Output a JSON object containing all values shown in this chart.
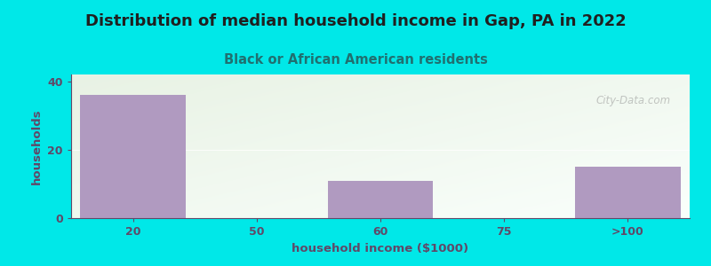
{
  "title": "Distribution of median household income in Gap, PA in 2022",
  "subtitle": "Black or African American residents",
  "xlabel": "household income ($1000)",
  "ylabel": "households",
  "categories": [
    "20",
    "50",
    "60",
    "75",
    ">100"
  ],
  "values": [
    36,
    0,
    11,
    0,
    15
  ],
  "bar_color": "#b09ac0",
  "background_color": "#00e8e8",
  "plot_bg_color_topleft": "#e8f0e4",
  "plot_bg_color_bottomright": "#f8faf8",
  "yticks": [
    0,
    20,
    40
  ],
  "ylim": [
    0,
    42
  ],
  "title_color": "#202020",
  "subtitle_color": "#207070",
  "axis_label_color": "#604868",
  "tick_color": "#604868",
  "watermark": "City-Data.com",
  "title_fontsize": 13,
  "subtitle_fontsize": 10.5,
  "label_fontsize": 9.5,
  "tick_fontsize": 9
}
